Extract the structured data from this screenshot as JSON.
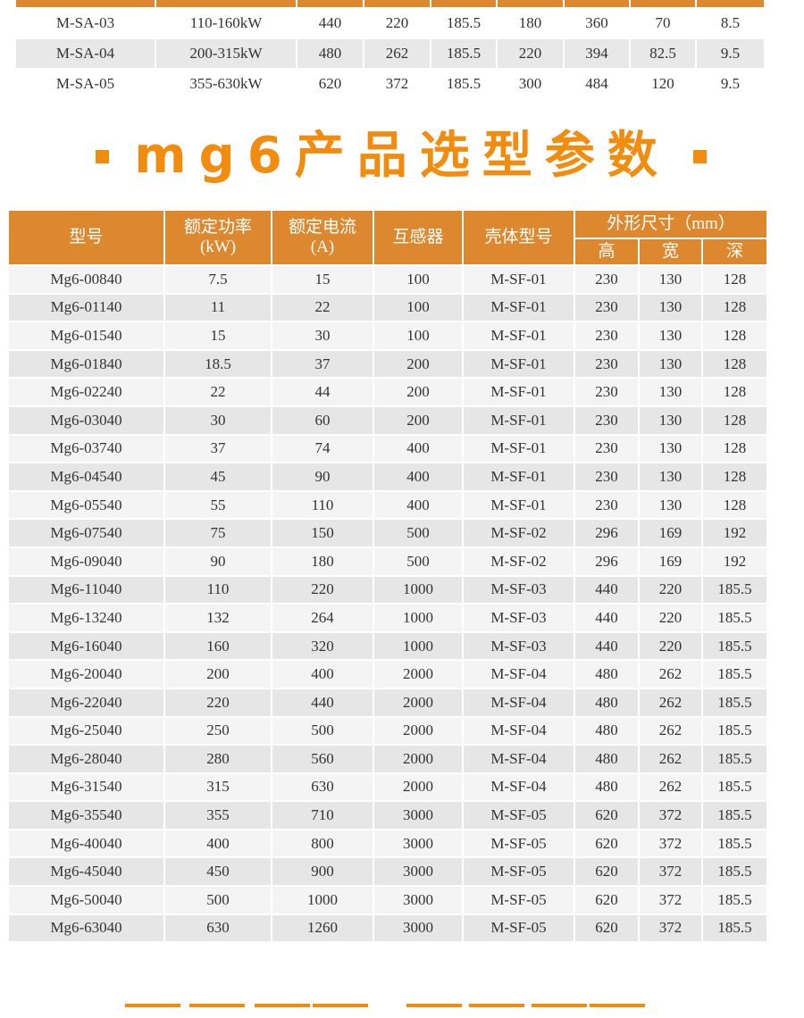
{
  "top_table": {
    "rows": [
      [
        "M-SA-03",
        "110-160kW",
        "440",
        "220",
        "185.5",
        "180",
        "360",
        "70",
        "8.5"
      ],
      [
        "M-SA-04",
        "200-315kW",
        "480",
        "262",
        "185.5",
        "220",
        "394",
        "82.5",
        "9.5"
      ],
      [
        "M-SA-05",
        "355-630kW",
        "620",
        "372",
        "185.5",
        "300",
        "484",
        "120",
        "9.5"
      ]
    ]
  },
  "section_title": "mg6产品选型参数",
  "accent_color": "#f28c0f",
  "header_color": "#dd882f",
  "main_table": {
    "headers": {
      "model": "型号",
      "power": "额定功率",
      "power_unit": "(kW)",
      "current": "额定电流",
      "current_unit": "(A)",
      "transformer": "互感器",
      "housing": "壳体型号",
      "dimensions": "外形尺寸（mm）",
      "height": "高",
      "width": "宽",
      "depth": "深"
    },
    "rows": [
      [
        "Mg6-00840",
        "7.5",
        "15",
        "100",
        "M-SF-01",
        "230",
        "130",
        "128"
      ],
      [
        "Mg6-01140",
        "11",
        "22",
        "100",
        "M-SF-01",
        "230",
        "130",
        "128"
      ],
      [
        "Mg6-01540",
        "15",
        "30",
        "100",
        "M-SF-01",
        "230",
        "130",
        "128"
      ],
      [
        "Mg6-01840",
        "18.5",
        "37",
        "200",
        "M-SF-01",
        "230",
        "130",
        "128"
      ],
      [
        "Mg6-02240",
        "22",
        "44",
        "200",
        "M-SF-01",
        "230",
        "130",
        "128"
      ],
      [
        "Mg6-03040",
        "30",
        "60",
        "200",
        "M-SF-01",
        "230",
        "130",
        "128"
      ],
      [
        "Mg6-03740",
        "37",
        "74",
        "400",
        "M-SF-01",
        "230",
        "130",
        "128"
      ],
      [
        "Mg6-04540",
        "45",
        "90",
        "400",
        "M-SF-01",
        "230",
        "130",
        "128"
      ],
      [
        "Mg6-05540",
        "55",
        "110",
        "400",
        "M-SF-01",
        "230",
        "130",
        "128"
      ],
      [
        "Mg6-07540",
        "75",
        "150",
        "500",
        "M-SF-02",
        "296",
        "169",
        "192"
      ],
      [
        "Mg6-09040",
        "90",
        "180",
        "500",
        "M-SF-02",
        "296",
        "169",
        "192"
      ],
      [
        "Mg6-11040",
        "110",
        "220",
        "1000",
        "M-SF-03",
        "440",
        "220",
        "185.5"
      ],
      [
        "Mg6-13240",
        "132",
        "264",
        "1000",
        "M-SF-03",
        "440",
        "220",
        "185.5"
      ],
      [
        "Mg6-16040",
        "160",
        "320",
        "1000",
        "M-SF-03",
        "440",
        "220",
        "185.5"
      ],
      [
        "Mg6-20040",
        "200",
        "400",
        "2000",
        "M-SF-04",
        "480",
        "262",
        "185.5"
      ],
      [
        "Mg6-22040",
        "220",
        "440",
        "2000",
        "M-SF-04",
        "480",
        "262",
        "185.5"
      ],
      [
        "Mg6-25040",
        "250",
        "500",
        "2000",
        "M-SF-04",
        "480",
        "262",
        "185.5"
      ],
      [
        "Mg6-28040",
        "280",
        "560",
        "2000",
        "M-SF-04",
        "480",
        "262",
        "185.5"
      ],
      [
        "Mg6-31540",
        "315",
        "630",
        "2000",
        "M-SF-04",
        "480",
        "262",
        "185.5"
      ],
      [
        "Mg6-35540",
        "355",
        "710",
        "3000",
        "M-SF-05",
        "620",
        "372",
        "185.5"
      ],
      [
        "Mg6-40040",
        "400",
        "800",
        "3000",
        "M-SF-05",
        "620",
        "372",
        "185.5"
      ],
      [
        "Mg6-45040",
        "450",
        "900",
        "3000",
        "M-SF-05",
        "620",
        "372",
        "185.5"
      ],
      [
        "Mg6-50040",
        "500",
        "1000",
        "3000",
        "M-SF-05",
        "620",
        "372",
        "185.5"
      ],
      [
        "Mg6-63040",
        "630",
        "1260",
        "3000",
        "M-SF-05",
        "620",
        "372",
        "185.5"
      ]
    ]
  }
}
